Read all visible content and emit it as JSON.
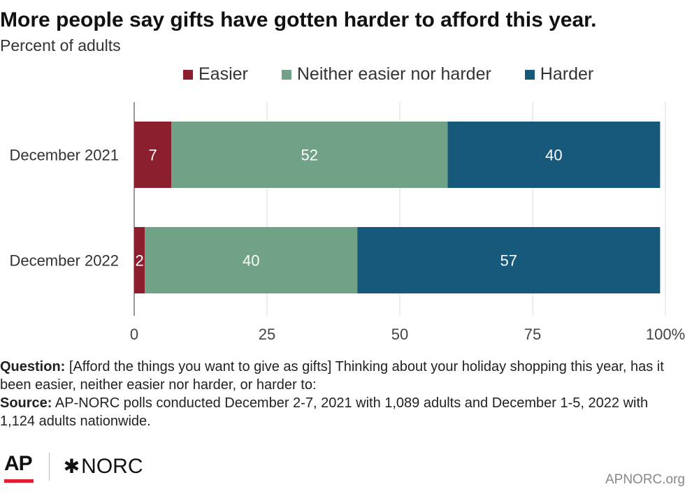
{
  "header": {
    "title": "More people say gifts have gotten harder to afford this year.",
    "subtitle": "Percent of adults"
  },
  "legend": {
    "items": [
      {
        "label": "Easier",
        "color": "#8b1f2d"
      },
      {
        "label": "Neither easier nor harder",
        "color": "#6fa287"
      },
      {
        "label": "Harder",
        "color": "#17597a"
      }
    ]
  },
  "chart_data": {
    "type": "bar",
    "orientation": "horizontal",
    "stacked": true,
    "categories": [
      "December 2021",
      "December 2022"
    ],
    "series": [
      {
        "name": "Easier",
        "values": [
          7,
          2
        ],
        "color": "#8b1f2d"
      },
      {
        "name": "Neither easier nor harder",
        "values": [
          52,
          40
        ],
        "color": "#6fa287"
      },
      {
        "name": "Harder",
        "values": [
          40,
          57
        ],
        "color": "#17597a"
      }
    ],
    "xlim": [
      0,
      100
    ],
    "xticks": [
      0,
      25,
      50,
      75,
      100
    ],
    "xtick_labels": [
      "0",
      "25",
      "50",
      "75",
      "100%"
    ],
    "grid": "vertical",
    "legend": "top"
  },
  "notes": {
    "question_label": "Question:",
    "question_text": " [Afford the things you want to give as gifts] Thinking about your holiday shopping this year, has it been easier, neither easier nor harder, or harder to:",
    "source_label": "Source:",
    "source_text": " AP-NORC polls conducted December 2-7, 2021 with 1,089 adults and December 1-5, 2022 with 1,124 adults nationwide."
  },
  "footer": {
    "ap_logo": "AP",
    "norc_logo": "NORC",
    "site": "APNORC.org"
  }
}
